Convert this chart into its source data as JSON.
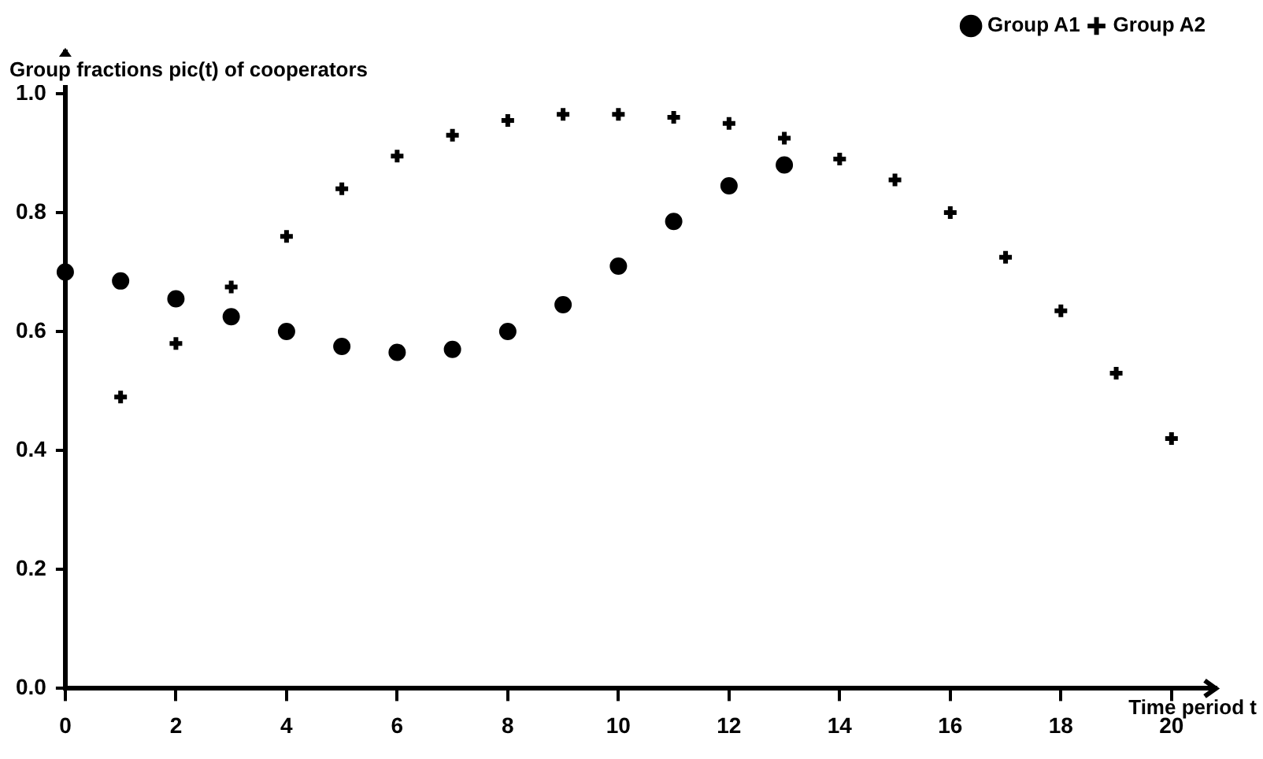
{
  "chart_data": {
    "type": "scatter",
    "ylabel": "Group fractions pic(t) of cooperators",
    "xlabel": "Time period t",
    "series": [
      {
        "name": "Group A1",
        "color": "#000000",
        "marker": "circle",
        "x": [
          0,
          1,
          2,
          3,
          4,
          5,
          6,
          7,
          8,
          9,
          10,
          11,
          12,
          13
        ],
        "values": [
          0.7,
          0.685,
          0.655,
          0.625,
          0.6,
          0.575,
          0.565,
          0.57,
          0.6,
          0.645,
          0.71,
          0.785,
          0.845,
          0.88
        ]
      },
      {
        "name": "Group A2",
        "color": "#000000",
        "marker": "cross",
        "x": [
          1,
          2,
          3,
          4,
          5,
          6,
          7,
          8,
          9,
          10,
          11,
          12,
          13,
          14,
          15,
          16,
          17,
          18,
          19,
          20
        ],
        "values": [
          0.49,
          0.58,
          0.675,
          0.76,
          0.84,
          0.895,
          0.93,
          0.955,
          0.965,
          0.965,
          0.96,
          0.95,
          0.925,
          0.89,
          0.855,
          0.8,
          0.725,
          0.635,
          0.53,
          0.42
        ]
      }
    ],
    "xlim": [
      0,
      20.8
    ],
    "xticks": [
      0,
      2,
      4,
      6,
      8,
      10,
      12,
      14,
      16,
      18,
      20
    ],
    "ylim": [
      0,
      1.07
    ],
    "yticks": [
      {
        "value": 0,
        "label": "0.0"
      },
      {
        "value": 0.2,
        "label": "0.2"
      },
      {
        "value": 0.4,
        "label": "0.4"
      },
      {
        "value": 0.6,
        "label": "0.6"
      },
      {
        "value": 0.8,
        "label": "0.8"
      },
      {
        "value": 1,
        "label": "1.0"
      }
    ],
    "grid": false,
    "legend": "top right"
  }
}
